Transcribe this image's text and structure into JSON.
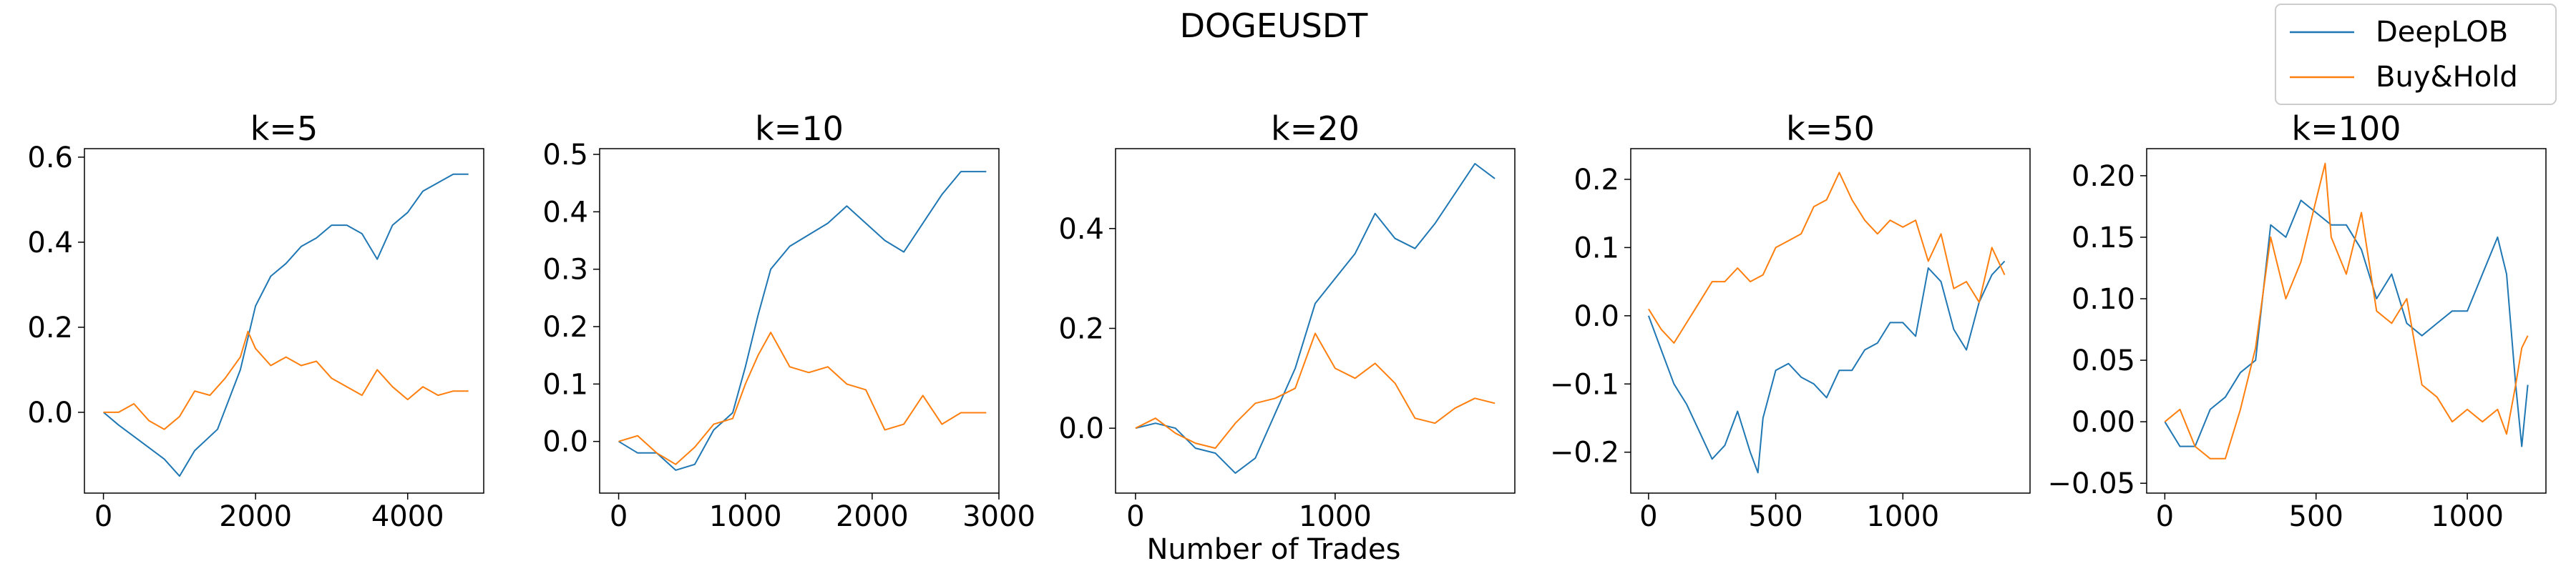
{
  "figure": {
    "title": "DOGEUSDT",
    "shared_xlabel": "Number of Trades",
    "legend": {
      "placement": "top-right",
      "entries": [
        "DeepLOB",
        "Buy&Hold"
      ]
    }
  },
  "colors": {
    "DeepLOB": "#1f77b4",
    "Buy&Hold": "#ff7f0e"
  },
  "chart_data": [
    {
      "type": "line",
      "title": "k=5",
      "xlim": [
        -250,
        5000
      ],
      "ylim": [
        -0.19,
        0.62
      ],
      "xticks": [
        0,
        2000,
        4000
      ],
      "xtick_labels": [
        "0",
        "2000",
        "4000"
      ],
      "yticks": [
        0.0,
        0.2,
        0.4,
        0.6
      ],
      "ytick_labels": [
        "0.0",
        "0.2",
        "0.4",
        "0.6"
      ],
      "grid": false,
      "series": [
        {
          "name": "DeepLOB",
          "x": [
            0,
            200,
            500,
            800,
            1000,
            1200,
            1500,
            1800,
            2000,
            2200,
            2400,
            2600,
            2800,
            3000,
            3200,
            3400,
            3600,
            3800,
            4000,
            4200,
            4400,
            4600,
            4800
          ],
          "y": [
            0.0,
            -0.03,
            -0.07,
            -0.11,
            -0.15,
            -0.09,
            -0.04,
            0.1,
            0.25,
            0.32,
            0.35,
            0.39,
            0.41,
            0.44,
            0.44,
            0.42,
            0.36,
            0.44,
            0.47,
            0.52,
            0.54,
            0.56,
            0.56
          ]
        },
        {
          "name": "Buy&Hold",
          "x": [
            0,
            200,
            400,
            600,
            800,
            1000,
            1200,
            1400,
            1600,
            1800,
            1900,
            2000,
            2200,
            2400,
            2600,
            2800,
            3000,
            3200,
            3400,
            3600,
            3800,
            4000,
            4200,
            4400,
            4600,
            4800
          ],
          "y": [
            0.0,
            0.0,
            0.02,
            -0.02,
            -0.04,
            -0.01,
            0.05,
            0.04,
            0.08,
            0.13,
            0.19,
            0.15,
            0.11,
            0.13,
            0.11,
            0.12,
            0.08,
            0.06,
            0.04,
            0.1,
            0.06,
            0.03,
            0.06,
            0.04,
            0.05,
            0.05
          ]
        }
      ]
    },
    {
      "type": "line",
      "title": "k=10",
      "xlim": [
        -150,
        3000
      ],
      "ylim": [
        -0.09,
        0.51
      ],
      "xticks": [
        0,
        1000,
        2000,
        3000
      ],
      "xtick_labels": [
        "0",
        "1000",
        "2000",
        "3000"
      ],
      "yticks": [
        0.0,
        0.1,
        0.2,
        0.3,
        0.4,
        0.5
      ],
      "ytick_labels": [
        "0.0",
        "0.1",
        "0.2",
        "0.3",
        "0.4",
        "0.5"
      ],
      "grid": false,
      "series": [
        {
          "name": "DeepLOB",
          "x": [
            0,
            150,
            300,
            450,
            600,
            750,
            900,
            1000,
            1100,
            1200,
            1350,
            1500,
            1650,
            1800,
            1950,
            2100,
            2250,
            2400,
            2550,
            2700,
            2900
          ],
          "y": [
            0.0,
            -0.02,
            -0.02,
            -0.05,
            -0.04,
            0.02,
            0.05,
            0.13,
            0.22,
            0.3,
            0.34,
            0.36,
            0.38,
            0.41,
            0.38,
            0.35,
            0.33,
            0.38,
            0.43,
            0.47,
            0.47
          ]
        },
        {
          "name": "Buy&Hold",
          "x": [
            0,
            150,
            300,
            450,
            600,
            750,
            900,
            1000,
            1100,
            1200,
            1350,
            1500,
            1650,
            1800,
            1950,
            2100,
            2250,
            2400,
            2550,
            2700,
            2900
          ],
          "y": [
            0.0,
            0.01,
            -0.02,
            -0.04,
            -0.01,
            0.03,
            0.04,
            0.1,
            0.15,
            0.19,
            0.13,
            0.12,
            0.13,
            0.1,
            0.09,
            0.02,
            0.03,
            0.08,
            0.03,
            0.05,
            0.05
          ]
        }
      ]
    },
    {
      "type": "line",
      "title": "k=20",
      "xlim": [
        -100,
        1900
      ],
      "ylim": [
        -0.13,
        0.56
      ],
      "xticks": [
        0,
        1000
      ],
      "xtick_labels": [
        "0",
        "1000"
      ],
      "yticks": [
        0.0,
        0.2,
        0.4
      ],
      "ytick_labels": [
        "0.0",
        "0.2",
        "0.4"
      ],
      "grid": false,
      "series": [
        {
          "name": "DeepLOB",
          "x": [
            0,
            100,
            200,
            300,
            400,
            500,
            600,
            700,
            800,
            900,
            1000,
            1100,
            1200,
            1300,
            1400,
            1500,
            1600,
            1700,
            1800
          ],
          "y": [
            0.0,
            0.01,
            0.0,
            -0.04,
            -0.05,
            -0.09,
            -0.06,
            0.03,
            0.12,
            0.25,
            0.3,
            0.35,
            0.43,
            0.38,
            0.36,
            0.41,
            0.47,
            0.53,
            0.5
          ]
        },
        {
          "name": "Buy&Hold",
          "x": [
            0,
            100,
            200,
            300,
            400,
            500,
            600,
            700,
            800,
            900,
            1000,
            1100,
            1200,
            1300,
            1400,
            1500,
            1600,
            1700,
            1800
          ],
          "y": [
            0.0,
            0.02,
            -0.01,
            -0.03,
            -0.04,
            0.01,
            0.05,
            0.06,
            0.08,
            0.19,
            0.12,
            0.1,
            0.13,
            0.09,
            0.02,
            0.01,
            0.04,
            0.06,
            0.05
          ]
        }
      ]
    },
    {
      "type": "line",
      "title": "k=50",
      "xlim": [
        -70,
        1500
      ],
      "ylim": [
        -0.26,
        0.245
      ],
      "xticks": [
        0,
        500,
        1000
      ],
      "xtick_labels": [
        "0",
        "500",
        "1000"
      ],
      "yticks": [
        -0.2,
        -0.1,
        0.0,
        0.1,
        0.2
      ],
      "ytick_labels": [
        "−0.2",
        "−0.1",
        "0.0",
        "0.1",
        "0.2"
      ],
      "grid": false,
      "series": [
        {
          "name": "DeepLOB",
          "x": [
            0,
            50,
            100,
            150,
            200,
            250,
            300,
            350,
            400,
            430,
            450,
            500,
            550,
            600,
            650,
            700,
            750,
            800,
            850,
            900,
            950,
            1000,
            1050,
            1100,
            1150,
            1200,
            1250,
            1300,
            1350,
            1400
          ],
          "y": [
            0.0,
            -0.05,
            -0.1,
            -0.13,
            -0.17,
            -0.21,
            -0.19,
            -0.14,
            -0.2,
            -0.23,
            -0.15,
            -0.08,
            -0.07,
            -0.09,
            -0.1,
            -0.12,
            -0.08,
            -0.08,
            -0.05,
            -0.04,
            -0.01,
            -0.01,
            -0.03,
            0.07,
            0.05,
            -0.02,
            -0.05,
            0.02,
            0.06,
            0.08
          ]
        },
        {
          "name": "Buy&Hold",
          "x": [
            0,
            50,
            100,
            150,
            200,
            250,
            300,
            350,
            400,
            450,
            500,
            550,
            600,
            650,
            700,
            750,
            800,
            850,
            900,
            950,
            1000,
            1050,
            1100,
            1150,
            1200,
            1250,
            1300,
            1350,
            1400
          ],
          "y": [
            0.01,
            -0.02,
            -0.04,
            -0.01,
            0.02,
            0.05,
            0.05,
            0.07,
            0.05,
            0.06,
            0.1,
            0.11,
            0.12,
            0.16,
            0.17,
            0.21,
            0.17,
            0.14,
            0.12,
            0.14,
            0.13,
            0.14,
            0.08,
            0.12,
            0.04,
            0.05,
            0.02,
            0.1,
            0.06
          ]
        }
      ]
    },
    {
      "type": "line",
      "title": "k=100",
      "xlim": [
        -60,
        1260
      ],
      "ylim": [
        -0.058,
        0.222
      ],
      "xticks": [
        0,
        500,
        1000
      ],
      "xtick_labels": [
        "0",
        "500",
        "1000"
      ],
      "yticks": [
        -0.05,
        0.0,
        0.05,
        0.1,
        0.15,
        0.2
      ],
      "ytick_labels": [
        "−0.05",
        "0.00",
        "0.05",
        "0.10",
        "0.15",
        "0.20"
      ],
      "grid": false,
      "series": [
        {
          "name": "DeepLOB",
          "x": [
            0,
            50,
            100,
            150,
            200,
            250,
            300,
            350,
            400,
            450,
            500,
            550,
            600,
            650,
            700,
            750,
            800,
            850,
            900,
            950,
            1000,
            1050,
            1100,
            1130,
            1160,
            1180,
            1200
          ],
          "y": [
            0.0,
            -0.02,
            -0.02,
            0.01,
            0.02,
            0.04,
            0.05,
            0.16,
            0.15,
            0.18,
            0.17,
            0.16,
            0.16,
            0.14,
            0.1,
            0.12,
            0.08,
            0.07,
            0.08,
            0.09,
            0.09,
            0.12,
            0.15,
            0.12,
            0.03,
            -0.02,
            0.03
          ]
        },
        {
          "name": "Buy&Hold",
          "x": [
            0,
            50,
            100,
            150,
            200,
            250,
            300,
            350,
            400,
            450,
            500,
            530,
            550,
            600,
            650,
            700,
            750,
            800,
            850,
            900,
            950,
            1000,
            1050,
            1100,
            1130,
            1160,
            1180,
            1200
          ],
          "y": [
            0.0,
            0.01,
            -0.02,
            -0.03,
            -0.03,
            0.01,
            0.06,
            0.15,
            0.1,
            0.13,
            0.18,
            0.21,
            0.15,
            0.12,
            0.17,
            0.09,
            0.08,
            0.1,
            0.03,
            0.02,
            0.0,
            0.01,
            0.0,
            0.01,
            -0.01,
            0.03,
            0.06,
            0.07
          ]
        }
      ]
    }
  ]
}
